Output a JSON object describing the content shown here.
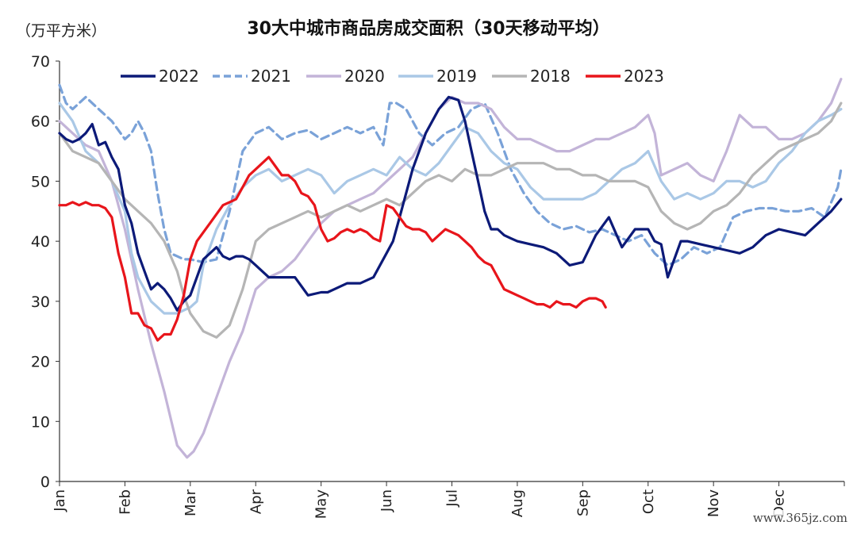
{
  "unit_label": "（万平方米）",
  "title": "30大中城市商品房成交面积（30天移动平均）",
  "watermark": "www.365jz.com",
  "chart_data": {
    "type": "line",
    "title": "30大中城市商品房成交面积（30天移动平均）",
    "ylabel": "（万平方米）",
    "xlabel": "",
    "ylim": [
      0,
      70
    ],
    "yticks": [
      0,
      10,
      20,
      30,
      40,
      50,
      60,
      70
    ],
    "xlim": [
      0,
      12
    ],
    "x_tick_labels": [
      "Jan",
      "Feb",
      "Mar",
      "Apr",
      "May",
      "Jun",
      "Jul",
      "Aug",
      "Sep",
      "Oct",
      "Nov",
      "Dec"
    ],
    "grid": false,
    "legend_position": "top",
    "series": [
      {
        "name": "2022",
        "color": "#0c1a78",
        "dash": "solid",
        "x": [
          0,
          0.1,
          0.2,
          0.3,
          0.4,
          0.5,
          0.6,
          0.7,
          0.8,
          0.9,
          1.0,
          1.1,
          1.2,
          1.3,
          1.4,
          1.5,
          1.6,
          1.7,
          1.8,
          1.9,
          2.0,
          2.1,
          2.2,
          2.3,
          2.4,
          2.5,
          2.6,
          2.7,
          2.8,
          2.9,
          3.0,
          3.2,
          3.4,
          3.6,
          3.8,
          4.0,
          4.1,
          4.2,
          4.4,
          4.6,
          4.8,
          5.0,
          5.1,
          5.2,
          5.4,
          5.6,
          5.8,
          5.95,
          6.1,
          6.2,
          6.3,
          6.4,
          6.5,
          6.6,
          6.7,
          6.8,
          6.9,
          7.0,
          7.2,
          7.4,
          7.6,
          7.8,
          8.0,
          8.2,
          8.4,
          8.6,
          8.8,
          9.0,
          9.1,
          9.2,
          9.3,
          9.4,
          9.5,
          9.6,
          9.8,
          10.0,
          10.2,
          10.4,
          10.6,
          10.8,
          11.0,
          11.2,
          11.4,
          11.6,
          11.8,
          11.95
        ],
        "y": [
          58,
          57,
          56.5,
          57,
          58,
          59.5,
          56,
          56.5,
          54,
          52,
          46,
          43,
          38,
          35,
          32,
          33,
          32,
          30.5,
          28.5,
          30,
          31,
          34,
          37,
          38,
          39,
          37.5,
          37,
          37.5,
          37.5,
          37,
          36,
          34,
          34,
          34,
          31,
          31.5,
          31.5,
          32,
          33,
          33,
          34,
          38,
          40,
          44,
          52,
          58,
          62,
          64,
          63.5,
          60,
          55,
          50,
          45,
          42,
          42,
          41,
          40.5,
          40,
          39.5,
          39,
          38,
          36,
          36.5,
          41,
          44,
          39,
          42,
          42,
          40,
          39.5,
          34,
          37,
          40,
          40,
          39.5,
          39,
          38.5,
          38,
          39,
          41,
          42,
          41.5,
          41,
          43,
          45,
          47
        ]
      },
      {
        "name": "2021",
        "color": "#7aa2d8",
        "dash": "dashed",
        "x": [
          0,
          0.1,
          0.2,
          0.4,
          0.6,
          0.8,
          1.0,
          1.1,
          1.2,
          1.3,
          1.4,
          1.5,
          1.6,
          1.7,
          1.8,
          1.9,
          2.0,
          2.2,
          2.4,
          2.6,
          2.8,
          3.0,
          3.2,
          3.4,
          3.6,
          3.8,
          4.0,
          4.2,
          4.4,
          4.6,
          4.8,
          4.95,
          5.05,
          5.15,
          5.3,
          5.5,
          5.7,
          5.9,
          6.1,
          6.3,
          6.5,
          6.7,
          6.9,
          7.1,
          7.3,
          7.5,
          7.7,
          7.9,
          8.1,
          8.3,
          8.5,
          8.7,
          8.9,
          9.1,
          9.3,
          9.5,
          9.7,
          9.9,
          10.1,
          10.3,
          10.5,
          10.7,
          10.9,
          11.1,
          11.3,
          11.5,
          11.7,
          11.9,
          11.95
        ],
        "y": [
          66,
          63,
          62,
          64,
          62,
          60,
          57,
          58,
          60,
          58,
          55,
          48,
          42,
          38,
          37.5,
          37,
          37,
          36.5,
          37,
          45,
          55,
          58,
          59,
          57,
          58,
          58.5,
          57,
          58,
          59,
          58,
          59,
          56,
          63,
          63,
          62,
          58,
          56,
          58,
          59,
          62,
          63,
          58,
          52,
          48,
          45,
          43,
          42,
          42.5,
          41.5,
          42,
          41,
          40,
          41,
          38,
          36,
          37,
          39,
          38,
          39,
          44,
          45,
          45.5,
          45.5,
          45,
          45,
          45.5,
          44,
          49,
          52
        ]
      },
      {
        "name": "2020",
        "color": "#c3b4d8",
        "dash": "solid",
        "x": [
          0,
          0.2,
          0.4,
          0.6,
          0.8,
          1.0,
          1.2,
          1.4,
          1.6,
          1.8,
          1.95,
          2.05,
          2.2,
          2.4,
          2.6,
          2.8,
          3.0,
          3.2,
          3.4,
          3.6,
          3.8,
          4.0,
          4.2,
          4.4,
          4.6,
          4.8,
          5.0,
          5.2,
          5.4,
          5.6,
          5.8,
          6.0,
          6.2,
          6.4,
          6.6,
          6.8,
          7.0,
          7.2,
          7.4,
          7.6,
          7.8,
          8.0,
          8.2,
          8.4,
          8.6,
          8.8,
          9.0,
          9.1,
          9.2,
          9.4,
          9.6,
          9.8,
          10.0,
          10.2,
          10.4,
          10.6,
          10.8,
          11.0,
          11.2,
          11.4,
          11.6,
          11.8,
          11.95
        ],
        "y": [
          60,
          58,
          56,
          55,
          50,
          42,
          32,
          23,
          15,
          6,
          4,
          5,
          8,
          14,
          20,
          25,
          32,
          34,
          35,
          37,
          40,
          43,
          45,
          46,
          47,
          48,
          50,
          52,
          54,
          58,
          62,
          64,
          63,
          63,
          62,
          59,
          57,
          57,
          56,
          55,
          55,
          56,
          57,
          57,
          58,
          59,
          61,
          58,
          51,
          52,
          53,
          51,
          50,
          55,
          61,
          59,
          59,
          57,
          57,
          58,
          60,
          63,
          67
        ]
      },
      {
        "name": "2019",
        "color": "#aac8e6",
        "dash": "solid",
        "x": [
          0,
          0.2,
          0.4,
          0.6,
          0.8,
          1.0,
          1.1,
          1.2,
          1.4,
          1.6,
          1.8,
          2.0,
          2.1,
          2.2,
          2.4,
          2.6,
          2.8,
          3.0,
          3.2,
          3.4,
          3.6,
          3.8,
          4.0,
          4.2,
          4.4,
          4.6,
          4.8,
          5.0,
          5.2,
          5.4,
          5.6,
          5.8,
          6.0,
          6.2,
          6.4,
          6.6,
          6.8,
          7.0,
          7.2,
          7.4,
          7.6,
          7.8,
          8.0,
          8.2,
          8.4,
          8.6,
          8.8,
          9.0,
          9.2,
          9.4,
          9.6,
          9.8,
          10.0,
          10.2,
          10.4,
          10.6,
          10.8,
          11.0,
          11.2,
          11.4,
          11.6,
          11.8,
          11.95
        ],
        "y": [
          63,
          60,
          55,
          53,
          50,
          45,
          38,
          34,
          30,
          28,
          28,
          29,
          30,
          36,
          42,
          46,
          49,
          51,
          52,
          50,
          51,
          52,
          51,
          48,
          50,
          51,
          52,
          51,
          54,
          52,
          51,
          53,
          56,
          59,
          58,
          55,
          53,
          52,
          49,
          47,
          47,
          47,
          47,
          48,
          50,
          52,
          53,
          55,
          50,
          47,
          48,
          47,
          48,
          50,
          50,
          49,
          50,
          53,
          55,
          58,
          60,
          61,
          62
        ]
      },
      {
        "name": "2018",
        "color": "#b5b5b5",
        "dash": "solid",
        "x": [
          0,
          0.2,
          0.4,
          0.6,
          0.8,
          1.0,
          1.2,
          1.4,
          1.6,
          1.8,
          1.9,
          2.0,
          2.2,
          2.4,
          2.6,
          2.8,
          3.0,
          3.2,
          3.4,
          3.6,
          3.8,
          4.0,
          4.2,
          4.4,
          4.6,
          4.8,
          5.0,
          5.2,
          5.4,
          5.6,
          5.8,
          6.0,
          6.2,
          6.4,
          6.6,
          6.8,
          7.0,
          7.2,
          7.4,
          7.6,
          7.8,
          8.0,
          8.2,
          8.4,
          8.6,
          8.8,
          9.0,
          9.2,
          9.4,
          9.6,
          9.8,
          10.0,
          10.2,
          10.4,
          10.6,
          10.8,
          11.0,
          11.2,
          11.4,
          11.6,
          11.8,
          11.95
        ],
        "y": [
          58,
          55,
          54,
          53,
          50,
          47,
          45,
          43,
          40,
          35,
          31,
          28,
          25,
          24,
          26,
          32,
          40,
          42,
          43,
          44,
          45,
          44,
          45,
          46,
          45,
          46,
          47,
          46,
          48,
          50,
          51,
          50,
          52,
          51,
          51,
          52,
          53,
          53,
          53,
          52,
          52,
          51,
          51,
          50,
          50,
          50,
          49,
          45,
          43,
          42,
          43,
          45,
          46,
          48,
          51,
          53,
          55,
          56,
          57,
          58,
          60,
          63
        ]
      },
      {
        "name": "2023",
        "color": "#e8151b",
        "dash": "solid",
        "x": [
          0,
          0.1,
          0.2,
          0.3,
          0.4,
          0.5,
          0.6,
          0.7,
          0.8,
          0.9,
          1.0,
          1.1,
          1.2,
          1.3,
          1.4,
          1.5,
          1.6,
          1.7,
          1.8,
          1.9,
          2.0,
          2.1,
          2.2,
          2.3,
          2.4,
          2.5,
          2.6,
          2.7,
          2.8,
          2.9,
          3.0,
          3.1,
          3.2,
          3.3,
          3.4,
          3.5,
          3.6,
          3.7,
          3.8,
          3.9,
          4.0,
          4.1,
          4.2,
          4.3,
          4.4,
          4.5,
          4.6,
          4.7,
          4.8,
          4.9,
          5.0,
          5.1,
          5.2,
          5.3,
          5.4,
          5.5,
          5.6,
          5.7,
          5.8,
          5.9,
          6.0,
          6.1,
          6.2,
          6.3,
          6.4,
          6.5,
          6.6,
          6.7,
          6.8,
          6.9,
          7.0,
          7.1,
          7.2,
          7.3,
          7.4,
          7.5,
          7.6,
          7.7,
          7.8,
          7.9,
          8.0,
          8.1,
          8.2,
          8.3,
          8.35
        ],
        "y": [
          46,
          46,
          46.5,
          46,
          46.5,
          46,
          46,
          45.5,
          44,
          38,
          34,
          28,
          28,
          26,
          25.5,
          23.5,
          24.5,
          24.5,
          27,
          31,
          37,
          40,
          41.5,
          43,
          44.5,
          46,
          46.5,
          47,
          49,
          51,
          52,
          53,
          54,
          52.5,
          51,
          51,
          50,
          48,
          47.5,
          46,
          42,
          40,
          40.5,
          41.5,
          42,
          41.5,
          42,
          41.5,
          40.5,
          40,
          46,
          45.5,
          44,
          42.5,
          42,
          42,
          41.5,
          40,
          41,
          42,
          41.5,
          41,
          40,
          39,
          37.5,
          36.5,
          36,
          34,
          32,
          31.5,
          31,
          30.5,
          30,
          29.5,
          29.5,
          29,
          30,
          29.5,
          29.5,
          29,
          30,
          30.5,
          30.5,
          30,
          29
        ]
      }
    ]
  }
}
